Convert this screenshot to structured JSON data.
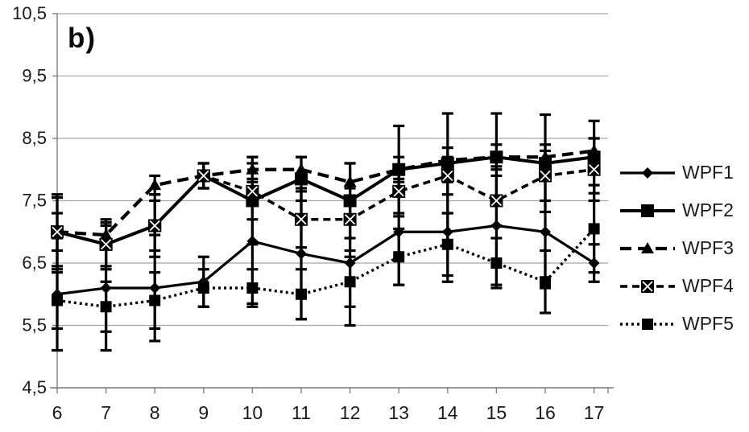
{
  "chart_data": {
    "type": "line",
    "title": "b)",
    "x": [
      6,
      7,
      8,
      9,
      10,
      11,
      12,
      13,
      14,
      15,
      16,
      17
    ],
    "x_tick_labels": [
      "6",
      "7",
      "8",
      "9",
      "10",
      "11",
      "12",
      "13",
      "14",
      "15",
      "16",
      "17"
    ],
    "ylim": [
      4.5,
      10.5
    ],
    "y_ticks": [
      10.5,
      9.5,
      8.5,
      7.5,
      6.5,
      5.5,
      4.5
    ],
    "y_tick_labels": [
      "10,5",
      "9,5",
      "8,5",
      "7,5",
      "6,5",
      "5,5",
      "4,5"
    ],
    "xlabel": "",
    "ylabel": "",
    "grid": "horizontal",
    "legend_position": "right",
    "error_bars": true,
    "series": [
      {
        "name": "WPF1",
        "line_style": "solid",
        "marker": "diamond",
        "values": [
          6.0,
          6.1,
          6.1,
          6.2,
          6.85,
          6.65,
          6.5,
          7.0,
          7.0,
          7.1,
          7.0,
          6.5
        ],
        "errors": [
          0.9,
          1.0,
          0.85,
          0.4,
          1.0,
          1.05,
          1.0,
          0.85,
          0.8,
          0.95,
          0.9,
          0.3
        ]
      },
      {
        "name": "WPF2",
        "line_style": "solid",
        "marker": "square",
        "values": [
          7.0,
          6.8,
          7.1,
          7.9,
          7.5,
          7.85,
          7.5,
          8.0,
          8.1,
          8.2,
          8.1,
          8.2
        ],
        "errors": [
          0.6,
          0.4,
          0.5,
          0.2,
          0.7,
          0.35,
          0.6,
          0.7,
          0.8,
          0.7,
          0.78,
          0.58
        ]
      },
      {
        "name": "WPF3",
        "line_style": "long-dash",
        "marker": "triangle",
        "values": [
          7.0,
          6.95,
          7.75,
          7.9,
          8.0,
          8.0,
          7.8,
          8.0,
          8.15,
          8.2,
          8.2,
          8.3
        ],
        "errors": [
          0.3,
          0.2,
          0.15,
          0.2,
          0.2,
          0.2,
          0.3,
          0.2,
          0.2,
          0.2,
          0.2,
          0.2
        ]
      },
      {
        "name": "WPF4",
        "line_style": "dash",
        "marker": "boxed-x",
        "values": [
          7.0,
          6.8,
          7.1,
          7.9,
          7.65,
          7.2,
          7.2,
          7.65,
          7.9,
          7.5,
          7.9,
          8.0
        ],
        "errors": [
          0.55,
          0.35,
          0.4,
          0.2,
          0.45,
          0.45,
          0.5,
          0.4,
          0.3,
          0.4,
          0.4,
          0.5
        ]
      },
      {
        "name": "WPF5",
        "line_style": "dot",
        "marker": "square",
        "values": [
          5.9,
          5.8,
          5.9,
          6.1,
          6.1,
          6.0,
          6.2,
          6.6,
          6.8,
          6.5,
          6.2,
          7.05
        ],
        "errors": [
          0.45,
          0.4,
          0.45,
          0.3,
          0.3,
          0.4,
          0.4,
          0.45,
          0.5,
          0.4,
          0.5,
          0.7
        ]
      }
    ],
    "colors": {
      "series": "#000000",
      "gridline": "#a8a8a8",
      "axis": "#7f7f7f",
      "text": "#1a1a1a",
      "background": "#ffffff"
    }
  }
}
